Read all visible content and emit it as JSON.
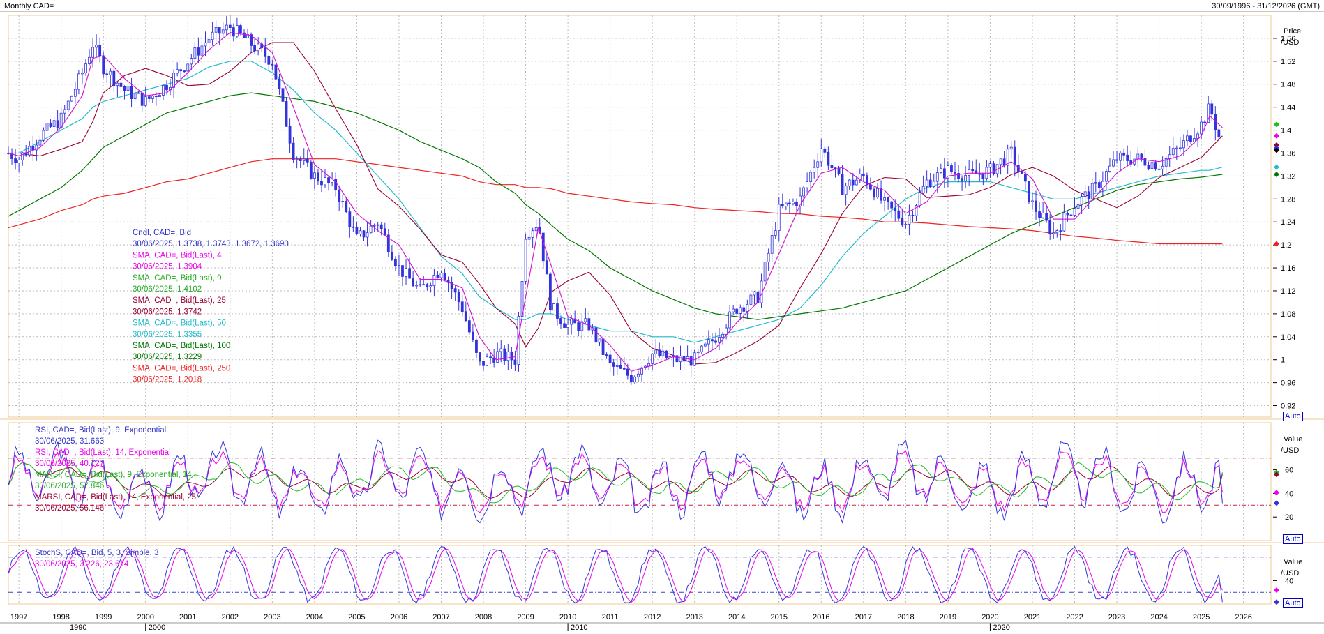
{
  "header": {
    "title": "Monthly CAD=",
    "range": "30/09/1996 - 31/12/2026 (GMT)"
  },
  "buttons": {
    "auto": "Auto"
  },
  "panels": {
    "price": {
      "unit_top": "Price",
      "unit_bottom": "/USD",
      "ticks": [
        "1.56",
        "1.52",
        "1.48",
        "1.44",
        "1.4",
        "1.36",
        "1.32",
        "1.28",
        "1.24",
        "1.2",
        "1.16",
        "1.12",
        "1.08",
        "1.04",
        "1",
        "0.96",
        "0.92"
      ]
    },
    "rsi": {
      "unit_top": "Value",
      "unit_bottom": "/USD",
      "ticks": [
        "60",
        "40",
        "20"
      ]
    },
    "stoch": {
      "unit_top": "Value",
      "unit_bottom": "/USD",
      "ticks": [
        "40"
      ]
    }
  },
  "xaxis": {
    "years": [
      "1997",
      "1998",
      "1999",
      "2000",
      "2001",
      "2002",
      "2003",
      "2004",
      "2005",
      "2006",
      "2007",
      "2008",
      "2009",
      "2010",
      "2011",
      "2012",
      "2013",
      "2014",
      "2015",
      "2016",
      "2017",
      "2018",
      "2019",
      "2020",
      "2021",
      "2022",
      "2023",
      "2024",
      "2025",
      "2026"
    ],
    "decades": [
      {
        "label": "1990",
        "year": 1990
      },
      {
        "label": "2000",
        "year": 2000
      },
      {
        "label": "2010",
        "year": 2010
      },
      {
        "label": "2020",
        "year": 2020
      }
    ]
  },
  "legend_price": [
    {
      "t": "Cndl, CAD=, Bid",
      "c": "#3333cc"
    },
    {
      "t": "30/06/2025, 1.3738, 1.3743, 1.3672, 1.3690",
      "c": "#3333cc"
    },
    {
      "t": "SMA, CAD=, Bid(Last),  4",
      "c": "#ee00ee"
    },
    {
      "t": "30/06/2025, 1.3904",
      "c": "#ee00ee"
    },
    {
      "t": "SMA, CAD=, Bid(Last),  9",
      "c": "#22aa22"
    },
    {
      "t": "30/06/2025, 1.4102",
      "c": "#22aa22"
    },
    {
      "t": "SMA, CAD=, Bid(Last),  25",
      "c": "#990033"
    },
    {
      "t": "30/06/2025, 1.3742",
      "c": "#990033"
    },
    {
      "t": "SMA, CAD=, Bid(Last),  50",
      "c": "#22bbcc"
    },
    {
      "t": "30/06/2025, 1.3355",
      "c": "#22bbcc"
    },
    {
      "t": "SMA, CAD=, Bid(Last),  100",
      "c": "#007700"
    },
    {
      "t": "30/06/2025, 1.3229",
      "c": "#007700"
    },
    {
      "t": "SMA, CAD=, Bid(Last),  250",
      "c": "#ee2222"
    },
    {
      "t": "30/06/2025, 1.2018",
      "c": "#ee2222"
    }
  ],
  "legend_rsi": [
    {
      "t": "RSI, CAD=, Bid(Last),  9, Exponential",
      "c": "#3333cc"
    },
    {
      "t": "30/06/2025, 31.663",
      "c": "#3333cc"
    },
    {
      "t": "RSI, CAD=, Bid(Last),  14, Exponential",
      "c": "#ee00ee"
    },
    {
      "t": "30/06/2025, 40.727",
      "c": "#ee00ee"
    },
    {
      "t": "MARSI, CAD=, Bid(Last),  9, Exponential, 14",
      "c": "#22aa22"
    },
    {
      "t": "30/06/2025, 57.846",
      "c": "#22aa22"
    },
    {
      "t": "MARSI, CAD=, Bid(Last),  14, Exponential, 25",
      "c": "#990033"
    },
    {
      "t": "30/06/2025, 56.146",
      "c": "#990033"
    }
  ],
  "legend_stoch": [
    {
      "t": "StochS, CAD=, Bid,  5, 3, Simple, 3",
      "c": "#3333cc"
    },
    {
      "t": "30/06/2025, 3.226, 23.614",
      "c": "#ee00ee"
    }
  ],
  "colors": {
    "candle": "#3333dd",
    "sma4": "#ee00ee",
    "sma9": "#22bb22",
    "sma25": "#990033",
    "sma50": "#22bbcc",
    "sma100": "#007700",
    "sma250": "#ee2222",
    "grid": "#bbbbbb",
    "border": "#f0c890"
  },
  "chart_data": [
    {
      "type": "line",
      "name": "price",
      "title": "Monthly CAD=",
      "ylabel": "Price /USD",
      "ylim": [
        0.9,
        1.6
      ],
      "x": [
        1996.75,
        1997,
        1997.5,
        1998,
        1998.5,
        1998.75,
        1999,
        1999.5,
        2000,
        2000.5,
        2001,
        2001.5,
        2002,
        2002.5,
        2003,
        2003.5,
        2004,
        2004.5,
        2005,
        2005.5,
        2006,
        2006.5,
        2007,
        2007.5,
        2007.9,
        2008.3,
        2008.75,
        2009,
        2009.3,
        2009.6,
        2010,
        2010.5,
        2011,
        2011.5,
        2012,
        2012.5,
        2013,
        2013.5,
        2014,
        2014.5,
        2015,
        2015.5,
        2016,
        2016.5,
        2017,
        2017.5,
        2018,
        2018.5,
        2019,
        2019.5,
        2020,
        2020.5,
        2021,
        2021.5,
        2022,
        2022.5,
        2023,
        2023.5,
        2024,
        2024.5,
        2025,
        2025.2,
        2025.5
      ],
      "series": [
        {
          "name": "Cndl, CAD=, Bid",
          "values": [
            1.36,
            1.35,
            1.39,
            1.42,
            1.5,
            1.55,
            1.51,
            1.47,
            1.45,
            1.48,
            1.52,
            1.56,
            1.58,
            1.55,
            1.52,
            1.36,
            1.32,
            1.3,
            1.21,
            1.24,
            1.16,
            1.12,
            1.16,
            1.09,
            0.99,
            1.01,
            1.0,
            1.22,
            1.24,
            1.09,
            1.06,
            1.06,
            0.99,
            0.97,
            1.01,
            1.0,
            1.0,
            1.04,
            1.09,
            1.11,
            1.26,
            1.28,
            1.37,
            1.3,
            1.32,
            1.27,
            1.24,
            1.31,
            1.33,
            1.32,
            1.33,
            1.36,
            1.27,
            1.22,
            1.27,
            1.3,
            1.35,
            1.35,
            1.34,
            1.37,
            1.41,
            1.44,
            1.369
          ]
        },
        {
          "name": "SMA, CAD=, Bid(Last),  250",
          "values": [
            1.23,
            1.235,
            1.245,
            1.26,
            1.27,
            1.28,
            1.285,
            1.29,
            1.3,
            1.31,
            1.315,
            1.325,
            1.335,
            1.345,
            1.35,
            1.35,
            1.35,
            1.35,
            1.345,
            1.34,
            1.335,
            1.33,
            1.325,
            1.32,
            1.31,
            1.305,
            1.305,
            1.3,
            1.3,
            1.298,
            1.29,
            1.285,
            1.28,
            1.275,
            1.272,
            1.27,
            1.265,
            1.262,
            1.26,
            1.258,
            1.255,
            1.254,
            1.25,
            1.248,
            1.245,
            1.24,
            1.24,
            1.238,
            1.235,
            1.232,
            1.23,
            1.228,
            1.225,
            1.22,
            1.215,
            1.212,
            1.208,
            1.205,
            1.202,
            1.202,
            1.202,
            1.202,
            1.2018
          ]
        },
        {
          "name": "SMA, CAD=, Bid(Last),  100",
          "values": [
            1.25,
            1.26,
            1.28,
            1.3,
            1.33,
            1.35,
            1.37,
            1.39,
            1.41,
            1.43,
            1.44,
            1.45,
            1.46,
            1.465,
            1.46,
            1.455,
            1.45,
            1.44,
            1.43,
            1.415,
            1.4,
            1.38,
            1.365,
            1.35,
            1.335,
            1.31,
            1.29,
            1.27,
            1.255,
            1.235,
            1.21,
            1.19,
            1.16,
            1.14,
            1.12,
            1.105,
            1.09,
            1.08,
            1.075,
            1.07,
            1.075,
            1.08,
            1.085,
            1.09,
            1.1,
            1.11,
            1.12,
            1.14,
            1.16,
            1.18,
            1.2,
            1.22,
            1.235,
            1.25,
            1.265,
            1.28,
            1.295,
            1.305,
            1.31,
            1.315,
            1.318,
            1.32,
            1.3229
          ]
        },
        {
          "name": "SMA, CAD=, Bid(Last),  50",
          "values": [
            1.36,
            1.36,
            1.38,
            1.4,
            1.42,
            1.44,
            1.45,
            1.46,
            1.47,
            1.48,
            1.49,
            1.51,
            1.52,
            1.52,
            1.5,
            1.47,
            1.43,
            1.4,
            1.36,
            1.32,
            1.28,
            1.23,
            1.18,
            1.15,
            1.11,
            1.09,
            1.07,
            1.07,
            1.08,
            1.08,
            1.07,
            1.06,
            1.05,
            1.05,
            1.04,
            1.04,
            1.03,
            1.04,
            1.05,
            1.06,
            1.07,
            1.09,
            1.13,
            1.18,
            1.22,
            1.25,
            1.28,
            1.3,
            1.31,
            1.31,
            1.31,
            1.3,
            1.29,
            1.28,
            1.28,
            1.29,
            1.3,
            1.31,
            1.32,
            1.325,
            1.33,
            1.33,
            1.3355
          ]
        }
      ]
    },
    {
      "type": "line",
      "name": "rsi",
      "ylabel": "Value /USD",
      "ylim": [
        0,
        100
      ],
      "series": [
        {
          "name": "RSI, CAD=, Bid(Last),  9, Exponential",
          "last": 31.663
        },
        {
          "name": "RSI, CAD=, Bid(Last),  14, Exponential",
          "last": 40.727
        },
        {
          "name": "MARSI, CAD=, Bid(Last),  9, Exponential, 14",
          "last": 57.846
        },
        {
          "name": "MARSI, CAD=, Bid(Last),  14, Exponential, 25",
          "last": 56.146
        }
      ],
      "reference_lines": [
        70,
        30
      ]
    },
    {
      "type": "line",
      "name": "stoch",
      "ylabel": "Value /USD",
      "ylim": [
        0,
        100
      ],
      "series": [
        {
          "name": "StochS, CAD=, Bid,  5, 3, Simple, 3",
          "last_k": 3.226,
          "last_d": 23.614
        }
      ],
      "reference_lines": [
        80,
        20
      ]
    }
  ]
}
